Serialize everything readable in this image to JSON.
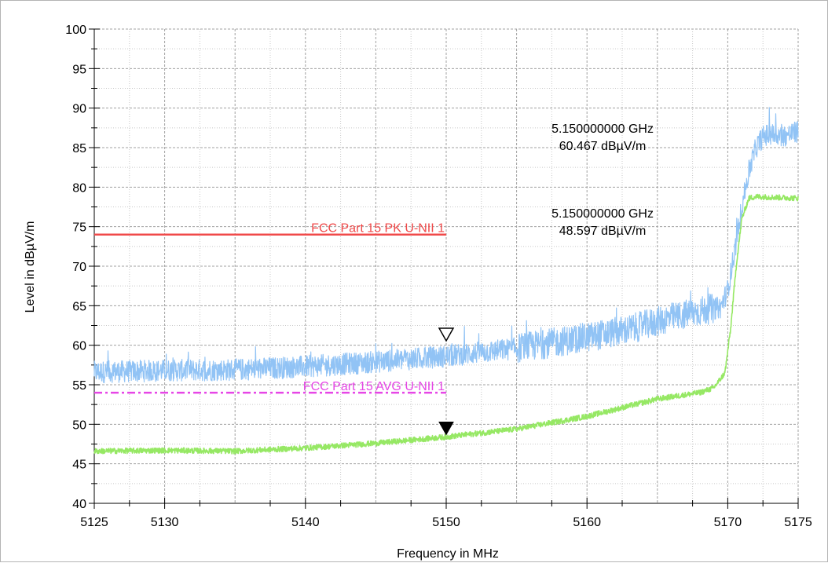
{
  "chart_data": {
    "type": "line",
    "title": "",
    "xlabel": "Frequency in MHz",
    "ylabel": "Level in dBµV/m",
    "xlim": [
      5125,
      5175
    ],
    "ylim": [
      40,
      100
    ],
    "x_ticks": [
      5125,
      5130,
      5140,
      5150,
      5160,
      5170,
      5175
    ],
    "y_ticks": [
      40,
      45,
      50,
      55,
      60,
      65,
      70,
      75,
      80,
      85,
      90,
      95,
      100
    ],
    "grid": true,
    "series": [
      {
        "color": "#91c3f5",
        "style": "noisy",
        "noise_amplitude": 1.4,
        "points": [
          [
            5125,
            56.6
          ],
          [
            5130,
            56.8
          ],
          [
            5135,
            56.9
          ],
          [
            5140,
            57.3
          ],
          [
            5145,
            57.9
          ],
          [
            5150,
            58.6
          ],
          [
            5155,
            59.6
          ],
          [
            5160,
            61.0
          ],
          [
            5163,
            62.0
          ],
          [
            5166,
            63.5
          ],
          [
            5168,
            64.3
          ],
          [
            5169.5,
            64.8
          ],
          [
            5170,
            67.0
          ],
          [
            5170.5,
            72.0
          ],
          [
            5171,
            77.5
          ],
          [
            5171.5,
            82.0
          ],
          [
            5172,
            85.0
          ],
          [
            5172.5,
            86.4
          ],
          [
            5173,
            86.7
          ],
          [
            5174,
            86.5
          ],
          [
            5175,
            87.0
          ]
        ]
      },
      {
        "color": "#96e864",
        "style": "fine",
        "noise_amplitude": 0.35,
        "points": [
          [
            5125,
            46.6
          ],
          [
            5130,
            46.7
          ],
          [
            5135,
            46.6
          ],
          [
            5140,
            47.0
          ],
          [
            5145,
            47.6
          ],
          [
            5150,
            48.4
          ],
          [
            5155,
            49.4
          ],
          [
            5160,
            51.0
          ],
          [
            5165,
            53.2
          ],
          [
            5168,
            54.0
          ],
          [
            5169,
            54.6
          ],
          [
            5169.8,
            56.5
          ],
          [
            5170.2,
            62.0
          ],
          [
            5170.6,
            70.0
          ],
          [
            5171,
            76.0
          ],
          [
            5171.5,
            78.6
          ],
          [
            5172,
            78.8
          ],
          [
            5175,
            78.6
          ]
        ]
      }
    ],
    "limit_lines": [
      {
        "label": "FCC Part 15  PK  U-NII 1",
        "y": 74,
        "x_start": 5125,
        "x_end": 5150,
        "color": "#f04a4a",
        "dash": "solid"
      },
      {
        "label": "FCC Part 15  AVG  U-NII 1",
        "y": 54,
        "x_start": 5125,
        "x_end": 5150,
        "color": "#e646e6",
        "dash": "dashdot"
      }
    ],
    "markers": [
      {
        "shape": "triangle-open",
        "x": 5150,
        "y": 60.467,
        "label_lines": [
          "5.150000000 GHz",
          "60.467 dBµV/m"
        ]
      },
      {
        "shape": "triangle-filled",
        "x": 5150,
        "y": 48.597,
        "label_lines": [
          "5.150000000 GHz",
          "48.597 dBµV/m"
        ]
      }
    ]
  }
}
